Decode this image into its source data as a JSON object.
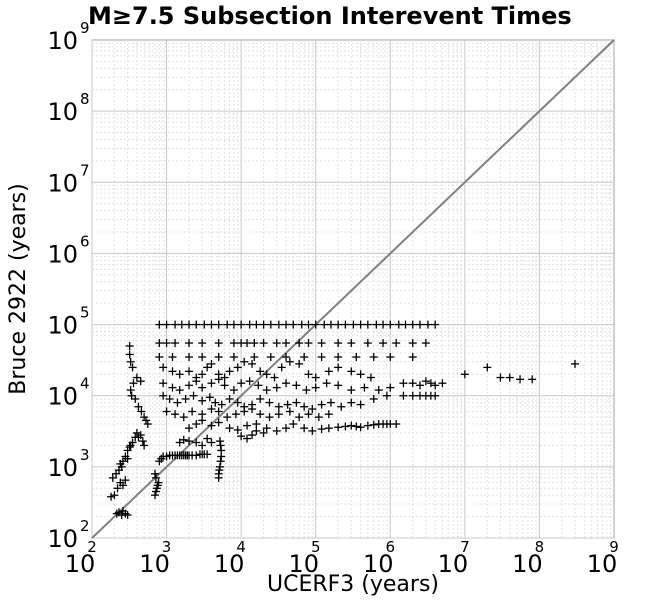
{
  "chart_data": {
    "type": "scatter",
    "title": "M≥7.5 Subsection Interevent Times",
    "xlabel": "UCERF3 (years)",
    "ylabel": "Bruce 2922 (years)",
    "x_scale": "log",
    "y_scale": "log",
    "xlim": [
      100,
      1000000000
    ],
    "ylim": [
      100,
      1000000000
    ],
    "grid": true,
    "tick_labels": {
      "x": [
        {
          "base": "10",
          "exp": "2"
        },
        {
          "base": "10",
          "exp": "3"
        },
        {
          "base": "10",
          "exp": "4"
        },
        {
          "base": "10",
          "exp": "5"
        },
        {
          "base": "10",
          "exp": "6"
        },
        {
          "base": "10",
          "exp": "7"
        },
        {
          "base": "10",
          "exp": "8"
        },
        {
          "base": "10",
          "exp": "9"
        }
      ],
      "y": [
        {
          "base": "10",
          "exp": "2"
        },
        {
          "base": "10",
          "exp": "3"
        },
        {
          "base": "10",
          "exp": "4"
        },
        {
          "base": "10",
          "exp": "5"
        },
        {
          "base": "10",
          "exp": "6"
        },
        {
          "base": "10",
          "exp": "7"
        },
        {
          "base": "10",
          "exp": "8"
        },
        {
          "base": "10",
          "exp": "9"
        }
      ]
    },
    "reference_line": {
      "x": [
        100,
        1000000000
      ],
      "y": [
        100,
        1000000000
      ],
      "color": "#808080"
    },
    "marker": "+",
    "marker_color": "#000000",
    "points": [
      [
        180,
        380
      ],
      [
        200,
        400
      ],
      [
        215,
        220
      ],
      [
        230,
        230
      ],
      [
        250,
        210
      ],
      [
        260,
        240
      ],
      [
        280,
        220
      ],
      [
        300,
        210
      ],
      [
        190,
        700
      ],
      [
        210,
        800
      ],
      [
        230,
        900
      ],
      [
        240,
        1100
      ],
      [
        260,
        1200
      ],
      [
        280,
        1400
      ],
      [
        300,
        1700
      ],
      [
        320,
        1900
      ],
      [
        220,
        500
      ],
      [
        240,
        600
      ],
      [
        260,
        550
      ],
      [
        280,
        650
      ],
      [
        250,
        1000
      ],
      [
        300,
        1300
      ],
      [
        330,
        2000
      ],
      [
        350,
        2200
      ],
      [
        380,
        2600
      ],
      [
        400,
        3000
      ],
      [
        420,
        2600
      ],
      [
        450,
        2800
      ],
      [
        480,
        2300
      ],
      [
        500,
        2000
      ],
      [
        320,
        50000
      ],
      [
        320,
        38000
      ],
      [
        330,
        30000
      ],
      [
        350,
        25000
      ],
      [
        330,
        12000
      ],
      [
        360,
        15000
      ],
      [
        400,
        18000
      ],
      [
        450,
        16000
      ],
      [
        340,
        10000
      ],
      [
        380,
        9000
      ],
      [
        420,
        7000
      ],
      [
        460,
        6000
      ],
      [
        500,
        5000
      ],
      [
        530,
        4500
      ],
      [
        560,
        4000
      ],
      [
        700,
        400
      ],
      [
        720,
        450
      ],
      [
        740,
        500
      ],
      [
        760,
        550
      ],
      [
        780,
        600
      ],
      [
        720,
        700
      ],
      [
        700,
        800
      ],
      [
        800,
        1200
      ],
      [
        850,
        1300
      ],
      [
        900,
        1400
      ],
      [
        1000,
        1400
      ],
      [
        1100,
        1450
      ],
      [
        1200,
        1450
      ],
      [
        1300,
        1450
      ],
      [
        1400,
        1450
      ],
      [
        1500,
        1450
      ],
      [
        1600,
        1450
      ],
      [
        1700,
        1450
      ],
      [
        1800,
        1450
      ],
      [
        1900,
        1450
      ],
      [
        2000,
        1450
      ],
      [
        2200,
        1450
      ],
      [
        2500,
        1450
      ],
      [
        2800,
        1500
      ],
      [
        3000,
        1500
      ],
      [
        3200,
        1500
      ],
      [
        3500,
        1500
      ],
      [
        1500,
        2200
      ],
      [
        1700,
        2400
      ],
      [
        2000,
        2300
      ],
      [
        2500,
        2200
      ],
      [
        3000,
        2000
      ],
      [
        3500,
        2500
      ],
      [
        4000,
        2200
      ],
      [
        800,
        100000
      ],
      [
        1000,
        100000
      ],
      [
        1300,
        100000
      ],
      [
        1600,
        100000
      ],
      [
        2000,
        100000
      ],
      [
        2500,
        100000
      ],
      [
        3200,
        100000
      ],
      [
        4000,
        100000
      ],
      [
        5000,
        100000
      ],
      [
        6500,
        100000
      ],
      [
        8000,
        100000
      ],
      [
        10000,
        100000
      ],
      [
        13000,
        100000
      ],
      [
        16000,
        100000
      ],
      [
        20000,
        100000
      ],
      [
        25000,
        100000
      ],
      [
        32000,
        100000
      ],
      [
        40000,
        100000
      ],
      [
        50000,
        100000
      ],
      [
        65000,
        100000
      ],
      [
        80000,
        100000
      ],
      [
        100000,
        100000
      ],
      [
        130000,
        100000
      ],
      [
        160000,
        100000
      ],
      [
        200000,
        100000
      ],
      [
        250000,
        100000
      ],
      [
        320000,
        100000
      ],
      [
        400000,
        100000
      ],
      [
        500000,
        100000
      ],
      [
        650000,
        100000
      ],
      [
        800000,
        100000
      ],
      [
        1000000,
        100000
      ],
      [
        1300000,
        100000
      ],
      [
        1600000,
        100000
      ],
      [
        2000000,
        100000
      ],
      [
        2500000,
        100000
      ],
      [
        3200000,
        100000
      ],
      [
        4000000,
        100000
      ],
      [
        800,
        55000
      ],
      [
        1000,
        55000
      ],
      [
        1300,
        55000
      ],
      [
        2000,
        55000
      ],
      [
        3000,
        55000
      ],
      [
        5000,
        55000
      ],
      [
        8000,
        55000
      ],
      [
        10000,
        55000
      ],
      [
        12000,
        55000
      ],
      [
        15000,
        55000
      ],
      [
        20000,
        55000
      ],
      [
        30000,
        55000
      ],
      [
        40000,
        55000
      ],
      [
        60000,
        55000
      ],
      [
        80000,
        55000
      ],
      [
        120000,
        55000
      ],
      [
        200000,
        55000
      ],
      [
        300000,
        55000
      ],
      [
        500000,
        55000
      ],
      [
        800000,
        55000
      ],
      [
        1200000,
        55000
      ],
      [
        2000000,
        55000
      ],
      [
        3000000,
        55000
      ],
      [
        800,
        35000
      ],
      [
        1200,
        35000
      ],
      [
        2000,
        35000
      ],
      [
        3000,
        35000
      ],
      [
        5000,
        35000
      ],
      [
        8000,
        35000
      ],
      [
        15000,
        35000
      ],
      [
        25000,
        35000
      ],
      [
        40000,
        35000
      ],
      [
        70000,
        35000
      ],
      [
        120000,
        35000
      ],
      [
        200000,
        35000
      ],
      [
        350000,
        35000
      ],
      [
        600000,
        35000
      ],
      [
        1000000,
        35000
      ],
      [
        2000000,
        35000
      ],
      [
        900,
        25000
      ],
      [
        1200,
        22000
      ],
      [
        1500,
        20000
      ],
      [
        2000,
        22000
      ],
      [
        2500,
        18000
      ],
      [
        3000,
        20000
      ],
      [
        3500,
        25000
      ],
      [
        4000,
        28000
      ],
      [
        5000,
        20000
      ],
      [
        6000,
        18000
      ],
      [
        7000,
        22000
      ],
      [
        9000,
        25000
      ],
      [
        11000,
        30000
      ],
      [
        14000,
        28000
      ],
      [
        18000,
        22000
      ],
      [
        22000,
        20000
      ],
      [
        28000,
        18000
      ],
      [
        35000,
        25000
      ],
      [
        45000,
        30000
      ],
      [
        60000,
        28000
      ],
      [
        80000,
        20000
      ],
      [
        100000,
        18000
      ],
      [
        150000,
        22000
      ],
      [
        200000,
        25000
      ],
      [
        300000,
        22000
      ],
      [
        400000,
        20000
      ],
      [
        550000,
        18000
      ],
      [
        900,
        15000
      ],
      [
        1200,
        13000
      ],
      [
        1500,
        12000
      ],
      [
        2000,
        14000
      ],
      [
        2500,
        16000
      ],
      [
        3000,
        13000
      ],
      [
        4000,
        15000
      ],
      [
        5000,
        17000
      ],
      [
        6000,
        14000
      ],
      [
        8000,
        12000
      ],
      [
        10000,
        15000
      ],
      [
        13000,
        16000
      ],
      [
        17000,
        14000
      ],
      [
        22000,
        12000
      ],
      [
        30000,
        13000
      ],
      [
        40000,
        15000
      ],
      [
        55000,
        14000
      ],
      [
        75000,
        12000
      ],
      [
        100000,
        13000
      ],
      [
        140000,
        15000
      ],
      [
        200000,
        14000
      ],
      [
        300000,
        12000
      ],
      [
        450000,
        13000
      ],
      [
        700000,
        12000
      ],
      [
        1000000,
        13000
      ],
      [
        900,
        10000
      ],
      [
        1100,
        9000
      ],
      [
        1400,
        8000
      ],
      [
        1800,
        9000
      ],
      [
        2300,
        10000
      ],
      [
        3000,
        8500
      ],
      [
        3800,
        9500
      ],
      [
        4500,
        8000
      ],
      [
        5500,
        7500
      ],
      [
        7000,
        9000
      ],
      [
        9000,
        8000
      ],
      [
        11000,
        7000
      ],
      [
        14000,
        7500
      ],
      [
        18000,
        9000
      ],
      [
        24000,
        8000
      ],
      [
        32000,
        7000
      ],
      [
        42000,
        7500
      ],
      [
        55000,
        8000
      ],
      [
        70000,
        7000
      ],
      [
        90000,
        6500
      ],
      [
        120000,
        7500
      ],
      [
        160000,
        8000
      ],
      [
        220000,
        7000
      ],
      [
        300000,
        8000
      ],
      [
        400000,
        7500
      ],
      [
        600000,
        9000
      ],
      [
        900000,
        10000
      ],
      [
        1500000,
        10000
      ],
      [
        2000000,
        10000
      ],
      [
        2500000,
        10000
      ],
      [
        3000000,
        10000
      ],
      [
        3500000,
        10000
      ],
      [
        4000000,
        10000
      ],
      [
        1000,
        6000
      ],
      [
        1300,
        5500
      ],
      [
        1700,
        5000
      ],
      [
        2200,
        6000
      ],
      [
        3000,
        5500
      ],
      [
        4000,
        6500
      ],
      [
        5000,
        6000
      ],
      [
        6500,
        5000
      ],
      [
        8500,
        5500
      ],
      [
        11000,
        6000
      ],
      [
        14000,
        6500
      ],
      [
        18000,
        5500
      ],
      [
        24000,
        5000
      ],
      [
        32000,
        5500
      ],
      [
        45000,
        6000
      ],
      [
        60000,
        5000
      ],
      [
        80000,
        5500
      ],
      [
        110000,
        5000
      ],
      [
        150000,
        5500
      ],
      [
        2000,
        3500
      ],
      [
        2500,
        4000
      ],
      [
        3000,
        4500
      ],
      [
        4000,
        3800
      ],
      [
        5000,
        4200
      ],
      [
        7000,
        3500
      ],
      [
        9000,
        3300
      ],
      [
        12000,
        3800
      ],
      [
        16000,
        4000
      ],
      [
        22000,
        3500
      ],
      [
        30000,
        3200
      ],
      [
        40000,
        3500
      ],
      [
        50000,
        4000
      ],
      [
        70000,
        3500
      ],
      [
        90000,
        3200
      ],
      [
        120000,
        3400
      ],
      [
        150000,
        3500
      ],
      [
        200000,
        3600
      ],
      [
        250000,
        3700
      ],
      [
        300000,
        3800
      ],
      [
        350000,
        3700
      ],
      [
        400000,
        3600
      ],
      [
        500000,
        3800
      ],
      [
        600000,
        3900
      ],
      [
        700000,
        4000
      ],
      [
        800000,
        4000
      ],
      [
        900000,
        4000
      ],
      [
        1000000,
        4000
      ],
      [
        1200000,
        4000
      ],
      [
        5000,
        700
      ],
      [
        5000,
        800
      ],
      [
        5100,
        900
      ],
      [
        5200,
        1000
      ],
      [
        5300,
        1200
      ],
      [
        5400,
        1400
      ],
      [
        5400,
        1700
      ],
      [
        5300,
        2000
      ],
      [
        5200,
        2300
      ],
      [
        10000,
        2700
      ],
      [
        12000,
        2500
      ],
      [
        14000,
        2800
      ],
      [
        16000,
        3200
      ],
      [
        20000,
        3000
      ],
      [
        1500000,
        15000
      ],
      [
        2000000,
        15000
      ],
      [
        2500000,
        14000
      ],
      [
        3000000,
        16000
      ],
      [
        3500000,
        15000
      ],
      [
        4000000,
        14000
      ],
      [
        5000000,
        15000
      ],
      [
        10000000,
        20000
      ],
      [
        20000000,
        25000
      ],
      [
        30000000,
        18000
      ],
      [
        40000000,
        18000
      ],
      [
        55000000,
        17000
      ],
      [
        80000000,
        17000
      ],
      [
        300000000,
        28000
      ]
    ]
  }
}
